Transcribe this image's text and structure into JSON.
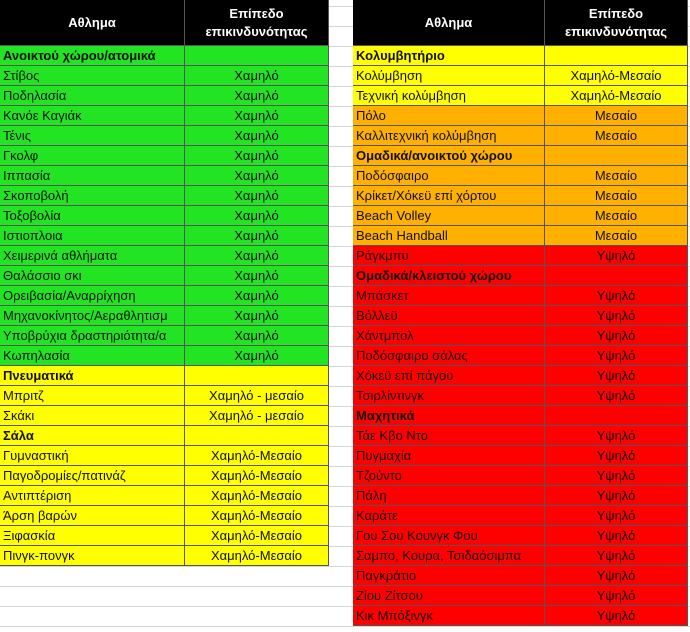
{
  "left": {
    "header": [
      "Αθλημα",
      "Επίπεδο επικινδυνότητας"
    ],
    "rows": [
      {
        "group": "Ανοικτού χώρου/ατομικά",
        "color": "#22e422"
      },
      {
        "cells": [
          "Στίβος",
          "Χαμηλό"
        ],
        "color": "#22e422"
      },
      {
        "cells": [
          "Ποδηλασία",
          "Χαμηλό"
        ],
        "color": "#22e422"
      },
      {
        "cells": [
          "Κανόε Καγιάκ",
          "Χαμηλό"
        ],
        "color": "#22e422"
      },
      {
        "cells": [
          "Τένις",
          "Χαμηλό"
        ],
        "color": "#22e422"
      },
      {
        "cells": [
          "Γκολφ",
          "Χαμηλό"
        ],
        "color": "#22e422"
      },
      {
        "cells": [
          "Ιππασία",
          "Χαμηλό"
        ],
        "color": "#22e422"
      },
      {
        "cells": [
          "Σκοποβολή",
          "Χαμηλό"
        ],
        "color": "#22e422"
      },
      {
        "cells": [
          "Τοξοβολία",
          "Χαμηλό"
        ],
        "color": "#22e422"
      },
      {
        "cells": [
          "Ιστιοπλοια",
          "Χαμηλό"
        ],
        "color": "#22e422"
      },
      {
        "cells": [
          "Χειμερινά αθλήματα",
          "Χαμηλό"
        ],
        "color": "#22e422"
      },
      {
        "cells": [
          "Θαλάσσιο σκι",
          "Χαμηλό"
        ],
        "color": "#22e422"
      },
      {
        "cells": [
          "Ορειβασία/Αναρρίχηση",
          "Χαμηλό"
        ],
        "color": "#22e422"
      },
      {
        "cells": [
          "Μηχανοκίνητος/Αεραθλητισμ",
          "Χαμηλό"
        ],
        "color": "#22e422"
      },
      {
        "cells": [
          "Υποβρύχια δραστηριότητα/α",
          "Χαμηλό"
        ],
        "color": "#22e422"
      },
      {
        "cells": [
          "Κωπηλασία",
          "Χαμηλό"
        ],
        "color": "#22e422"
      },
      {
        "group": "Πνευματικά",
        "color": "#ffff00"
      },
      {
        "cells": [
          "Μπριτζ",
          "Χαμηλό - μεσαίο"
        ],
        "color": "#ffff00"
      },
      {
        "cells": [
          "Σκάκι",
          "Χαμηλό - μεσαίο"
        ],
        "color": "#ffff00"
      },
      {
        "group": "Σάλα",
        "color": "#ffff00"
      },
      {
        "cells": [
          "Γυμναστική",
          "Χαμηλό-Μεσαίο"
        ],
        "color": "#ffff00"
      },
      {
        "cells": [
          "Παγοδρομίες/πατινάζ",
          "Χαμηλό-Μεσαίο"
        ],
        "color": "#ffff00"
      },
      {
        "cells": [
          "Αντιπτέριση",
          "Χαμηλό-Μεσαίο"
        ],
        "color": "#ffff00"
      },
      {
        "cells": [
          "Άρση βαρών",
          "Χαμηλό-Μεσαίο"
        ],
        "color": "#ffff00"
      },
      {
        "cells": [
          "Ξιφασκία",
          "Χαμηλό-Μεσαίο"
        ],
        "color": "#ffff00"
      },
      {
        "cells": [
          "Πινγκ-πονγκ",
          "Χαμηλό-Μεσαίο"
        ],
        "color": "#ffff00"
      }
    ]
  },
  "right": {
    "header": [
      "Αθλημα",
      "Επίπεδο επικινδυνότητας"
    ],
    "rows": [
      {
        "group": "Κολυμβητήριο",
        "color": "#ffff00"
      },
      {
        "cells": [
          "Κολύμβηση",
          "Χαμηλό-Μεσαίο"
        ],
        "color": "#ffff00"
      },
      {
        "cells": [
          "Τεχνική κολύμβηση",
          "Χαμηλό-Μεσαίο"
        ],
        "color": "#ffff00"
      },
      {
        "cells": [
          "Πόλο",
          "Μεσαίο"
        ],
        "color": "#ffb000"
      },
      {
        "cells": [
          "Καλλιτεχνική κολύμβηση",
          "Μεσαίο"
        ],
        "color": "#ffb000"
      },
      {
        "group": "Ομαδικά/ανοικτού χώρου",
        "color": "#ffb000"
      },
      {
        "cells": [
          "Ποδόσφαιρο",
          "Μεσαίο"
        ],
        "color": "#ffb000"
      },
      {
        "cells": [
          "Κρίκετ/Χόκεϋ επί χόρτου",
          "Μεσαίο"
        ],
        "color": "#ffb000"
      },
      {
        "cells": [
          "Beach Volley",
          "Μεσαίο"
        ],
        "color": "#ffb000"
      },
      {
        "cells": [
          "Beach Handball",
          "Μεσαίο"
        ],
        "color": "#ffb000"
      },
      {
        "cells": [
          "Ράγκμπυ",
          "Υψηλό"
        ],
        "color": "#ff0000"
      },
      {
        "group": "Ομαδικά/κλειστού χώρου",
        "color": "#ff0000"
      },
      {
        "cells": [
          "Μπάσκετ",
          "Υψηλό"
        ],
        "color": "#ff0000"
      },
      {
        "cells": [
          "Βόλλεϋ",
          "Υψηλό"
        ],
        "color": "#ff0000"
      },
      {
        "cells": [
          "Χάντμπολ",
          "Υψηλό"
        ],
        "color": "#ff0000"
      },
      {
        "cells": [
          "Ποδόσφαιρο σάλας",
          "Υψηλό"
        ],
        "color": "#ff0000"
      },
      {
        "cells": [
          "Χόκεϋ επί πάγου",
          "Υψηλό"
        ],
        "color": "#ff0000"
      },
      {
        "cells": [
          "Τσιρλίντινγκ",
          "Υψηλό"
        ],
        "color": "#ff0000"
      },
      {
        "group": "Μαχητικά",
        "color": "#ff0000"
      },
      {
        "cells": [
          "Τάε Κβο Ντο",
          "Υψηλό"
        ],
        "color": "#ff0000"
      },
      {
        "cells": [
          "Πυγμαχία",
          "Υψηλό"
        ],
        "color": "#ff0000"
      },
      {
        "cells": [
          "Τζούντο",
          "Υψηλό"
        ],
        "color": "#ff0000"
      },
      {
        "cells": [
          "Πάλη",
          "Υψηλό"
        ],
        "color": "#ff0000"
      },
      {
        "cells": [
          "Καράτε",
          "Υψηλό"
        ],
        "color": "#ff0000"
      },
      {
        "cells": [
          "Γου Σου Κουνγκ Φου",
          "Υψηλό"
        ],
        "color": "#ff0000"
      },
      {
        "cells": [
          "Σαμπο, Κουρα, Τσιδαόσιμπα",
          "Υψηλό"
        ],
        "color": "#ff0000"
      },
      {
        "cells": [
          "Παγκράτιο",
          "Υψηλό"
        ],
        "color": "#ff0000"
      },
      {
        "cells": [
          "Ζίου Ζίτσου",
          "Υψηλό"
        ],
        "color": "#ff0000"
      },
      {
        "cells": [
          "Κικ Μπόξινγκ",
          "Υψηλό"
        ],
        "color": "#ff0000"
      }
    ]
  }
}
